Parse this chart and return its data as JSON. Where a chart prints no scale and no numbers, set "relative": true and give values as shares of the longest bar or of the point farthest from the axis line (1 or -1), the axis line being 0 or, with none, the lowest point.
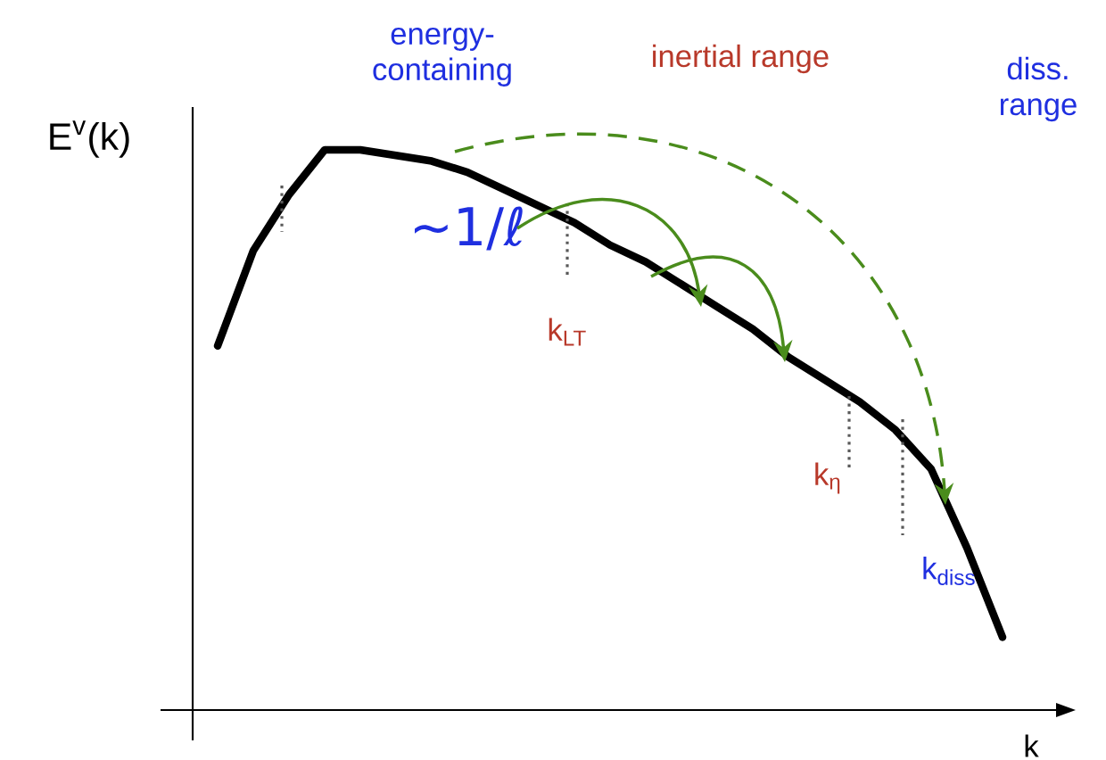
{
  "chart_data": {
    "type": "line",
    "relative": true,
    "xlabel": "k",
    "ylabel": "E$^{v}$(k)",
    "categories": [
      null,
      null,
      null,
      null,
      null,
      null,
      null,
      null,
      null,
      null,
      null,
      null,
      null,
      null,
      null,
      null,
      null,
      null,
      null,
      null,
      null,
      null,
      null
    ],
    "series": [
      {
        "color": "#000000",
        "values": [
          0.65,
          0.82,
          0.92,
          1.0,
          1.0,
          0.99,
          0.98,
          0.96,
          0.93,
          0.9,
          0.87,
          0.83,
          0.8,
          0.76,
          0.72,
          0.68,
          0.63,
          0.59,
          0.55,
          0.5,
          0.43,
          0.29,
          0.13
        ]
      }
    ],
    "annotations": [
      "energy-containing",
      "inertial range",
      "diss. range",
      "~1/ℓ",
      "k$_{LT}$",
      "k$_{η}$",
      "k$_{diss}$"
    ]
  }
}
